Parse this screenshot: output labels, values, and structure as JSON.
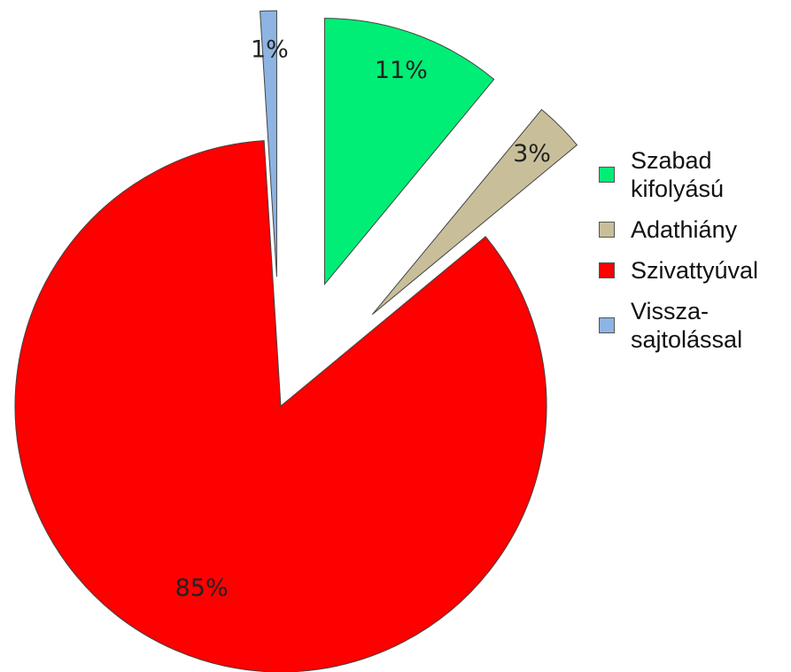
{
  "chart_data": {
    "type": "pie",
    "categories": [
      "Szabad kifolyású",
      "Adathiány",
      "Szivattyúval",
      "Vissza-sajtolással"
    ],
    "values": [
      11,
      3,
      85,
      1
    ],
    "value_labels": [
      "11%",
      "3%",
      "85%",
      "1%"
    ],
    "colors": [
      "#00ee76",
      "#c8bf9a",
      "#ff0000",
      "#8db4e2"
    ],
    "legend": "right"
  }
}
